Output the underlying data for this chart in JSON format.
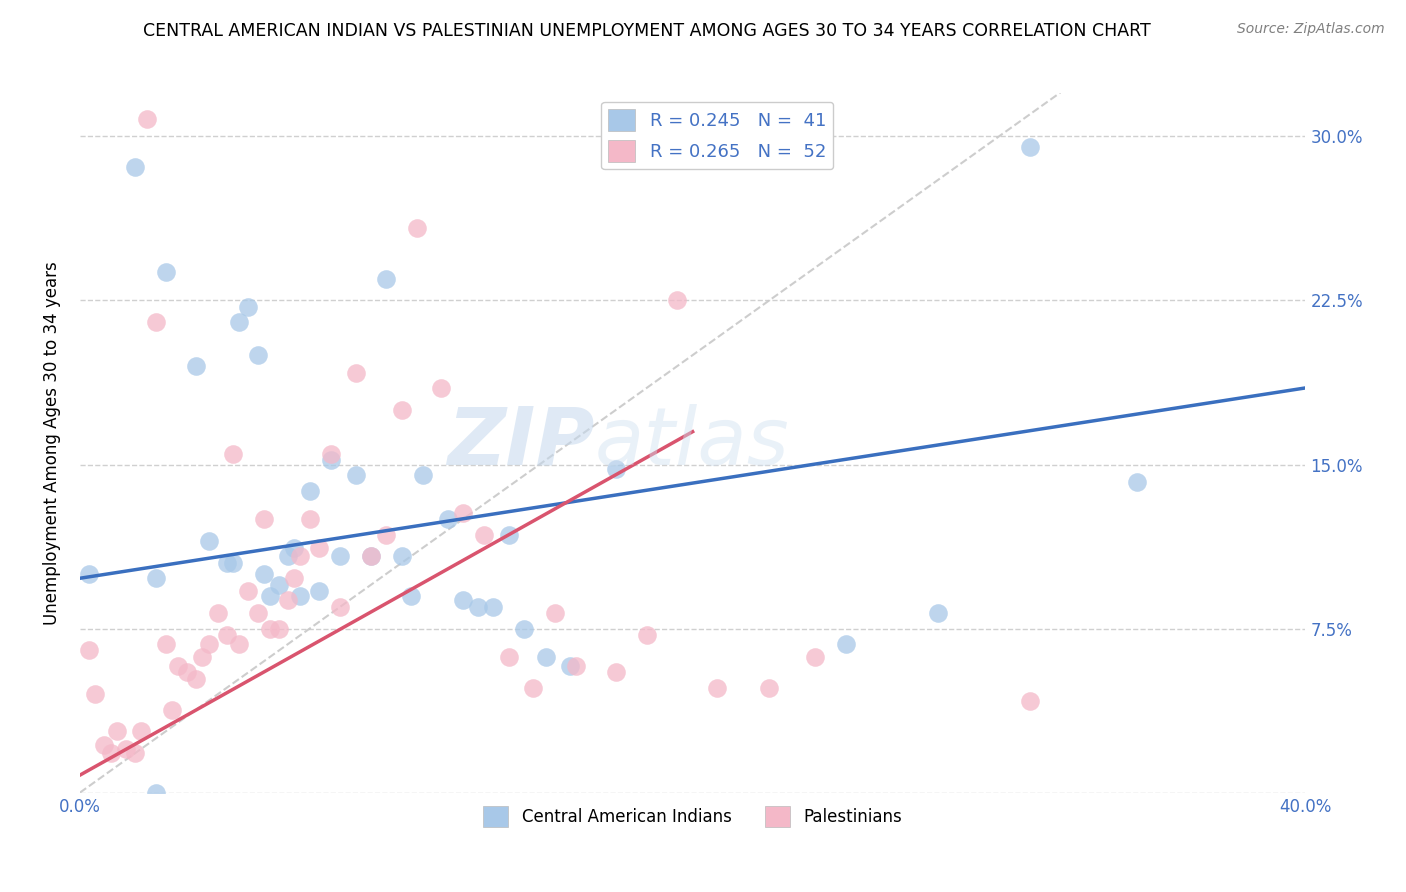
{
  "title": "CENTRAL AMERICAN INDIAN VS PALESTINIAN UNEMPLOYMENT AMONG AGES 30 TO 34 YEARS CORRELATION CHART",
  "source": "Source: ZipAtlas.com",
  "ylabel": "Unemployment Among Ages 30 to 34 years",
  "xlim": [
    0.0,
    0.4
  ],
  "ylim": [
    0.0,
    0.32
  ],
  "xtick_positions": [
    0.0,
    0.1,
    0.2,
    0.3,
    0.4
  ],
  "xtick_labels_visible": [
    "0.0%",
    "",
    "",
    "",
    "40.0%"
  ],
  "yticks": [
    0.0,
    0.075,
    0.15,
    0.225,
    0.3
  ],
  "ytick_labels": [
    "",
    "7.5%",
    "15.0%",
    "22.5%",
    "30.0%"
  ],
  "legend_blue_label": "R = 0.245   N =  41",
  "legend_pink_label": "R = 0.265   N =  52",
  "legend_bottom_blue": "Central American Indians",
  "legend_bottom_pink": "Palestinians",
  "blue_color": "#a8c8e8",
  "pink_color": "#f4b8c8",
  "blue_line_color": "#3a6fbf",
  "pink_line_color": "#d9546e",
  "diag_line_color": "#c8c8c8",
  "watermark_zip": "ZIP",
  "watermark_atlas": "atlas",
  "blue_line_x0": 0.0,
  "blue_line_y0": 0.098,
  "blue_line_x1": 0.4,
  "blue_line_y1": 0.185,
  "pink_line_x0": 0.0,
  "pink_line_y0": 0.008,
  "pink_line_x1": 0.2,
  "pink_line_y1": 0.165,
  "blue_scatter_x": [
    0.003,
    0.018,
    0.025,
    0.028,
    0.038,
    0.042,
    0.048,
    0.05,
    0.052,
    0.055,
    0.058,
    0.06,
    0.062,
    0.065,
    0.068,
    0.07,
    0.072,
    0.075,
    0.078,
    0.082,
    0.085,
    0.09,
    0.095,
    0.1,
    0.105,
    0.108,
    0.112,
    0.12,
    0.125,
    0.13,
    0.135,
    0.14,
    0.145,
    0.152,
    0.16,
    0.175,
    0.25,
    0.28,
    0.31,
    0.345,
    0.025
  ],
  "blue_scatter_y": [
    0.1,
    0.286,
    0.098,
    0.238,
    0.195,
    0.115,
    0.105,
    0.105,
    0.215,
    0.222,
    0.2,
    0.1,
    0.09,
    0.095,
    0.108,
    0.112,
    0.09,
    0.138,
    0.092,
    0.152,
    0.108,
    0.145,
    0.108,
    0.235,
    0.108,
    0.09,
    0.145,
    0.125,
    0.088,
    0.085,
    0.085,
    0.118,
    0.075,
    0.062,
    0.058,
    0.148,
    0.068,
    0.082,
    0.295,
    0.142,
    0.0
  ],
  "pink_scatter_x": [
    0.003,
    0.005,
    0.008,
    0.01,
    0.012,
    0.015,
    0.018,
    0.02,
    0.022,
    0.025,
    0.028,
    0.03,
    0.032,
    0.035,
    0.038,
    0.04,
    0.042,
    0.045,
    0.048,
    0.05,
    0.052,
    0.055,
    0.058,
    0.06,
    0.062,
    0.065,
    0.068,
    0.07,
    0.072,
    0.075,
    0.078,
    0.082,
    0.085,
    0.09,
    0.095,
    0.1,
    0.105,
    0.11,
    0.118,
    0.125,
    0.132,
    0.14,
    0.148,
    0.155,
    0.162,
    0.175,
    0.185,
    0.195,
    0.208,
    0.225,
    0.24,
    0.31
  ],
  "pink_scatter_y": [
    0.065,
    0.045,
    0.022,
    0.018,
    0.028,
    0.02,
    0.018,
    0.028,
    0.308,
    0.215,
    0.068,
    0.038,
    0.058,
    0.055,
    0.052,
    0.062,
    0.068,
    0.082,
    0.072,
    0.155,
    0.068,
    0.092,
    0.082,
    0.125,
    0.075,
    0.075,
    0.088,
    0.098,
    0.108,
    0.125,
    0.112,
    0.155,
    0.085,
    0.192,
    0.108,
    0.118,
    0.175,
    0.258,
    0.185,
    0.128,
    0.118,
    0.062,
    0.048,
    0.082,
    0.058,
    0.055,
    0.072,
    0.225,
    0.048,
    0.048,
    0.062,
    0.042
  ]
}
